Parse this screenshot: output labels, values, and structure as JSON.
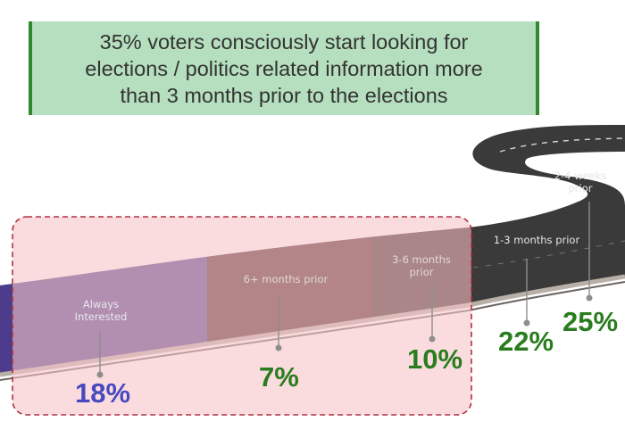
{
  "headline": {
    "line1": "35% voters consciously start looking for",
    "line2": "elections / politics related information more",
    "line3": "than 3 months prior to the elections"
  },
  "colors": {
    "headline_bg": "#b5dfbe",
    "headline_border": "#2f8a2f",
    "highlight_fill": "#f6c4c9",
    "highlight_border": "#b03040",
    "road_dark": "#3a3a3a",
    "always_segment": "#4d3c8c",
    "six_plus_segment": "#4e2626",
    "three_six_segment": "#3b2a2a",
    "blue_pct": "#4848c0",
    "green_pct": "#2a7d1e"
  },
  "chart_data": {
    "type": "table",
    "title": "35% voters consciously start looking for elections / politics related information more than 3 months prior to the elections",
    "categories": [
      "Always Interested",
      "6+ months prior",
      "3-6 months prior",
      "1-3 months prior",
      "2-4 weeks prior"
    ],
    "values": [
      18,
      7,
      10,
      22,
      25
    ],
    "value_labels": [
      "18%",
      "7%",
      "10%",
      "22%",
      "25%"
    ],
    "highlighted_categories": [
      "Always Interested",
      "6+ months prior",
      "3-6 months prior"
    ]
  },
  "stages": [
    {
      "line1": "Always",
      "line2": "Interested",
      "pct": "18%"
    },
    {
      "line1": "6+ months prior",
      "line2": "",
      "pct": "7%"
    },
    {
      "line1": "3-6 months",
      "line2": "prior",
      "pct": "10%"
    },
    {
      "line1": "1-3 months prior",
      "line2": "",
      "pct": "22%"
    },
    {
      "line1": "2-4 weeks",
      "line2": "prior",
      "pct": "25%"
    }
  ]
}
